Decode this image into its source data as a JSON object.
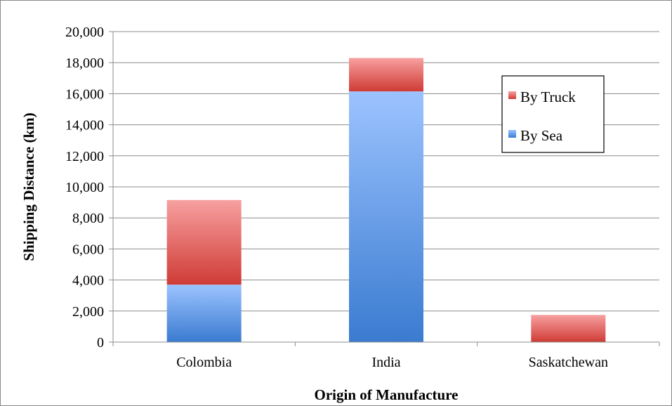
{
  "chart_data": {
    "type": "bar",
    "stacked": true,
    "categories": [
      "Colombia",
      "India",
      "Saskatchewan"
    ],
    "series": [
      {
        "name": "By Sea",
        "values": [
          3700,
          16150,
          0
        ],
        "color_top": "#9cc3ff",
        "color_bottom": "#3a7bd0"
      },
      {
        "name": "By Truck",
        "values": [
          5450,
          2150,
          1750
        ],
        "color_top": "#f7a0a0",
        "color_bottom": "#cf3b35"
      }
    ],
    "xlabel": "Origin of Manufacture",
    "ylabel": "Shipping Distance (km)",
    "ylim": [
      0,
      20000
    ],
    "yticks": [
      0,
      2000,
      4000,
      6000,
      8000,
      10000,
      12000,
      14000,
      16000,
      18000,
      20000
    ],
    "ytick_labels": [
      "0",
      "2,000",
      "4,000",
      "6,000",
      "8,000",
      "10,000",
      "12,000",
      "14,000",
      "16,000",
      "18,000",
      "20,000"
    ],
    "grid": true,
    "legend_position": "right, inside plot",
    "legend_order": [
      "By Truck",
      "By Sea"
    ]
  }
}
